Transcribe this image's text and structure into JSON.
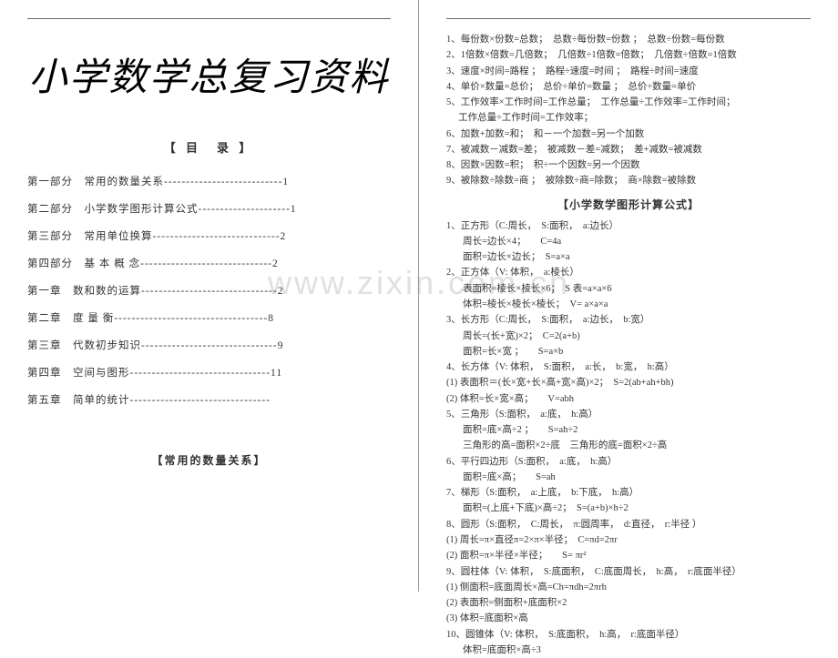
{
  "watermark": "www.zixin.com.cn",
  "leftPage": {
    "title": "小学数学总复习资料",
    "tocHeader": "【 目　录 】",
    "toc": [
      "第一部分　常用的数量关系---------------------------1",
      "第二部分　小学数学图形计算公式---------------------1",
      "第三部分　常用单位换算-----------------------------2",
      "第四部分　基 本 概 念------------------------------2",
      "第一章　数和数的运算-------------------------------2",
      "第二章　度 量 衡-----------------------------------8",
      "第三章　代数初步知识-------------------------------9",
      "第四章　空间与图形--------------------------------11",
      "第五章　简单的统计--------------------------------"
    ],
    "bottomSection": "【常用的数量关系】"
  },
  "rightPage": {
    "relations": [
      "1、每份数×份数=总数；　总数÷每份数=份数 ；　总数÷份数=每份数",
      "2、1倍数×倍数=几倍数；　几倍数÷1倍数=倍数；　几倍数÷倍数=1倍数",
      "3、速度×时间=路程 ；　路程÷速度=时间 ；　路程÷时间=速度",
      "4、单价×数量=总价；　总价÷单价=数量 ；　总价÷数量=单价",
      "5、工作效率×工作时间=工作总量；　工作总量÷工作效率=工作时间；",
      "　 工作总量÷工作时间=工作效率；",
      "6、加数+加数=和；　和－一个加数=另一个加数",
      "7、被减数－减数=差；　被减数－差=减数；　差+减数=被减数",
      "8、因数×因数=积；　积÷一个因数=另一个因数",
      "9、被除数÷除数=商 ；　被除数÷商=除数；　商×除数=被除数"
    ],
    "formulaTitle": "【小学数学图形计算公式】",
    "formulas": [
      {
        "t": "1、正方形（C:周长，　S:面积，　a:边长）"
      },
      {
        "t": "周长=边长×4；　　C=4a",
        "i": 1
      },
      {
        "t": "面积=边长×边长；　S=a×a",
        "i": 1
      },
      {
        "t": "2、正方体（V: 体积，　a:棱长）"
      },
      {
        "t": "表面积=棱长×棱长×6；　S 表=a×a×6",
        "i": 1
      },
      {
        "t": "体积=棱长×棱长×棱长；　V= a×a×a",
        "i": 1
      },
      {
        "t": "3、长方形（C:周长，　S:面积，　a:边长，　b:宽）"
      },
      {
        "t": "周长=(长+宽)×2；　C=2(a+b)",
        "i": 1
      },
      {
        "t": "面积=长×宽 ；　　S=a×b",
        "i": 1
      },
      {
        "t": "4、长方体（V: 体积，　S:面积，　a:长，　b:宽，　h:高）"
      },
      {
        "t": "(1) 表面积＝(长×宽+长×高+宽×高)×2；　S=2(ab+ah+bh)"
      },
      {
        "t": "(2) 体积=长×宽×高；　　V=abh"
      },
      {
        "t": "5、三角形（S:面积，　a:底，　h:高）"
      },
      {
        "t": "面积=底×高÷2 ；　　S=ah÷2",
        "i": 1
      },
      {
        "t": "三角形的高=面积×2÷底　三角形的底=面积×2÷高",
        "i": 1
      },
      {
        "t": "6、平行四边形（S:面积，　a:底，　h:高）"
      },
      {
        "t": "面积=底×高；　　S=ah",
        "i": 1
      },
      {
        "t": "7、梯形（S:面积，　a:上底，　b:下底，　h:高）"
      },
      {
        "t": "面积=(上底+下底)×高÷2；　S=(a+b)×h÷2",
        "i": 1
      },
      {
        "t": "8、圆形（S:面积，　C:周长，　π:圆周率，　d:直径，　r:半径 ）"
      },
      {
        "t": "(1) 周长=π×直径π=2×π×半径；　C=πd=2πr"
      },
      {
        "t": "(2) 面积=π×半径×半径；　　S= πr²"
      },
      {
        "t": "9、圆柱体（V: 体积，　S:底面积，　C:底面周长，　h:高，　r:底面半径）"
      },
      {
        "t": "(1) 侧面积=底面周长×高=Ch=πdh=2πrh"
      },
      {
        "t": "(2) 表面积=侧面积+底面积×2"
      },
      {
        "t": "(3) 体积=底面积×高"
      },
      {
        "t": "10、圆锥体（V: 体积，　S:底面积，　h:高，　r:底面半径）"
      },
      {
        "t": "体积=底面积×高÷3",
        "i": 1
      }
    ]
  }
}
